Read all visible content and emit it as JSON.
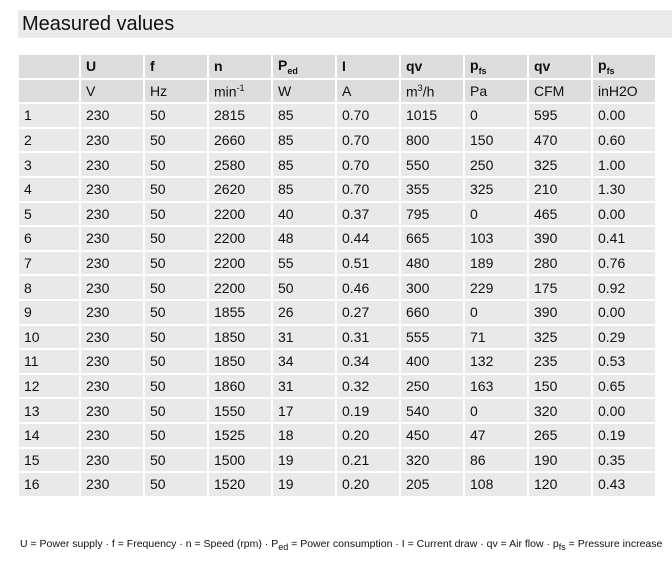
{
  "title": "Measured values",
  "table": {
    "header": [
      {
        "text": "U"
      },
      {
        "text": "f"
      },
      {
        "text": "n"
      },
      {
        "text": "P",
        "sub": "ed"
      },
      {
        "text": "I"
      },
      {
        "text": "qv"
      },
      {
        "text": "p",
        "sub": "fs"
      },
      {
        "text": "qv"
      },
      {
        "text": "p",
        "sub": "fs"
      }
    ],
    "units": [
      {
        "text": "V"
      },
      {
        "text": "Hz"
      },
      {
        "text": "min",
        "sup": "-1"
      },
      {
        "text": "W"
      },
      {
        "text": "A"
      },
      {
        "text": "m",
        "sup": "3",
        "after": "/h"
      },
      {
        "text": "Pa"
      },
      {
        "text": "CFM"
      },
      {
        "text": "inH2O"
      }
    ],
    "rows": [
      [
        "1",
        "230",
        "50",
        "2815",
        "85",
        "0.70",
        "1015",
        "0",
        "595",
        "0.00"
      ],
      [
        "2",
        "230",
        "50",
        "2660",
        "85",
        "0.70",
        "800",
        "150",
        "470",
        "0.60"
      ],
      [
        "3",
        "230",
        "50",
        "2580",
        "85",
        "0.70",
        "550",
        "250",
        "325",
        "1.00"
      ],
      [
        "4",
        "230",
        "50",
        "2620",
        "85",
        "0.70",
        "355",
        "325",
        "210",
        "1.30"
      ],
      [
        "5",
        "230",
        "50",
        "2200",
        "40",
        "0.37",
        "795",
        "0",
        "465",
        "0.00"
      ],
      [
        "6",
        "230",
        "50",
        "2200",
        "48",
        "0.44",
        "665",
        "103",
        "390",
        "0.41"
      ],
      [
        "7",
        "230",
        "50",
        "2200",
        "55",
        "0.51",
        "480",
        "189",
        "280",
        "0.76"
      ],
      [
        "8",
        "230",
        "50",
        "2200",
        "50",
        "0.46",
        "300",
        "229",
        "175",
        "0.92"
      ],
      [
        "9",
        "230",
        "50",
        "1855",
        "26",
        "0.27",
        "660",
        "0",
        "390",
        "0.00"
      ],
      [
        "10",
        "230",
        "50",
        "1850",
        "31",
        "0.31",
        "555",
        "71",
        "325",
        "0.29"
      ],
      [
        "11",
        "230",
        "50",
        "1850",
        "34",
        "0.34",
        "400",
        "132",
        "235",
        "0.53"
      ],
      [
        "12",
        "230",
        "50",
        "1860",
        "31",
        "0.32",
        "250",
        "163",
        "150",
        "0.65"
      ],
      [
        "13",
        "230",
        "50",
        "1550",
        "17",
        "0.19",
        "540",
        "0",
        "320",
        "0.00"
      ],
      [
        "14",
        "230",
        "50",
        "1525",
        "18",
        "0.20",
        "450",
        "47",
        "265",
        "0.19"
      ],
      [
        "15",
        "230",
        "50",
        "1500",
        "19",
        "0.21",
        "320",
        "86",
        "190",
        "0.35"
      ],
      [
        "16",
        "230",
        "50",
        "1520",
        "19",
        "0.20",
        "205",
        "108",
        "120",
        "0.43"
      ]
    ]
  },
  "footnote": [
    "U = Power supply · f = Frequency · n = Speed (rpm) · P",
    "ed",
    " = Power consumption · I = Current draw · qv = Air flow · p",
    "fs",
    " = Pressure increase"
  ]
}
